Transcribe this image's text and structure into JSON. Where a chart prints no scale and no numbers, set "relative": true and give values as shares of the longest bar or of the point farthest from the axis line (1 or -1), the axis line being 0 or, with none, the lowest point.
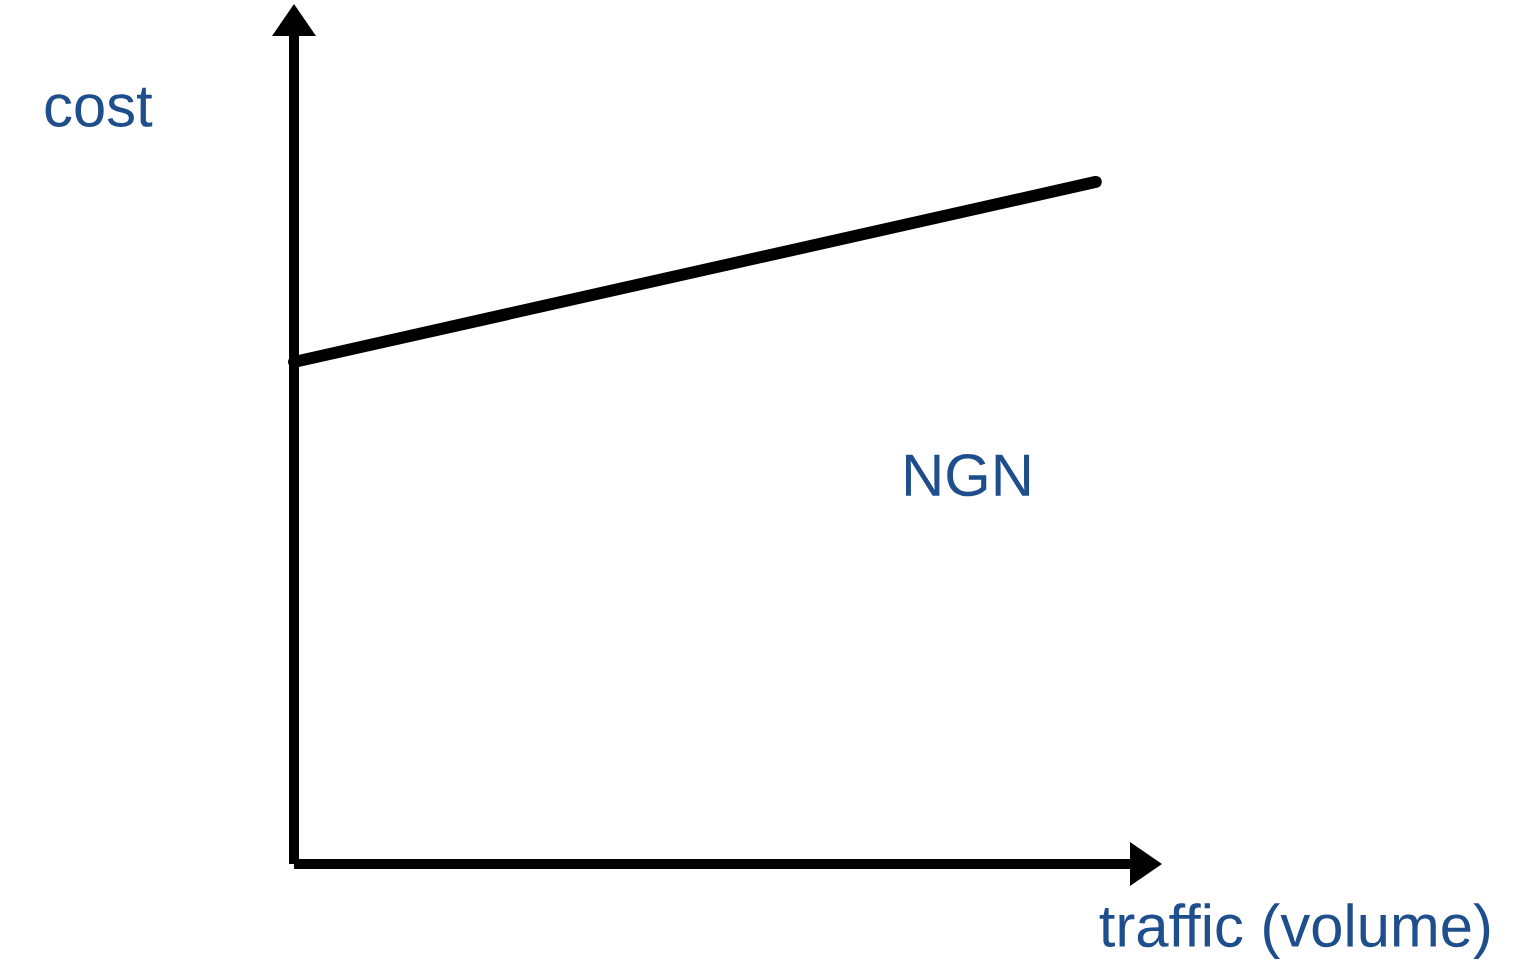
{
  "chart_data": {
    "type": "line",
    "relative": true,
    "xlabel": "traffic (volume)",
    "ylabel": "cost",
    "categories": [
      null,
      null
    ],
    "series": [
      {
        "name": "NGN",
        "color": "#000000",
        "values": [
          0.736,
          1
        ]
      }
    ],
    "legend": false,
    "marker": "none",
    "line_style": "solid"
  }
}
